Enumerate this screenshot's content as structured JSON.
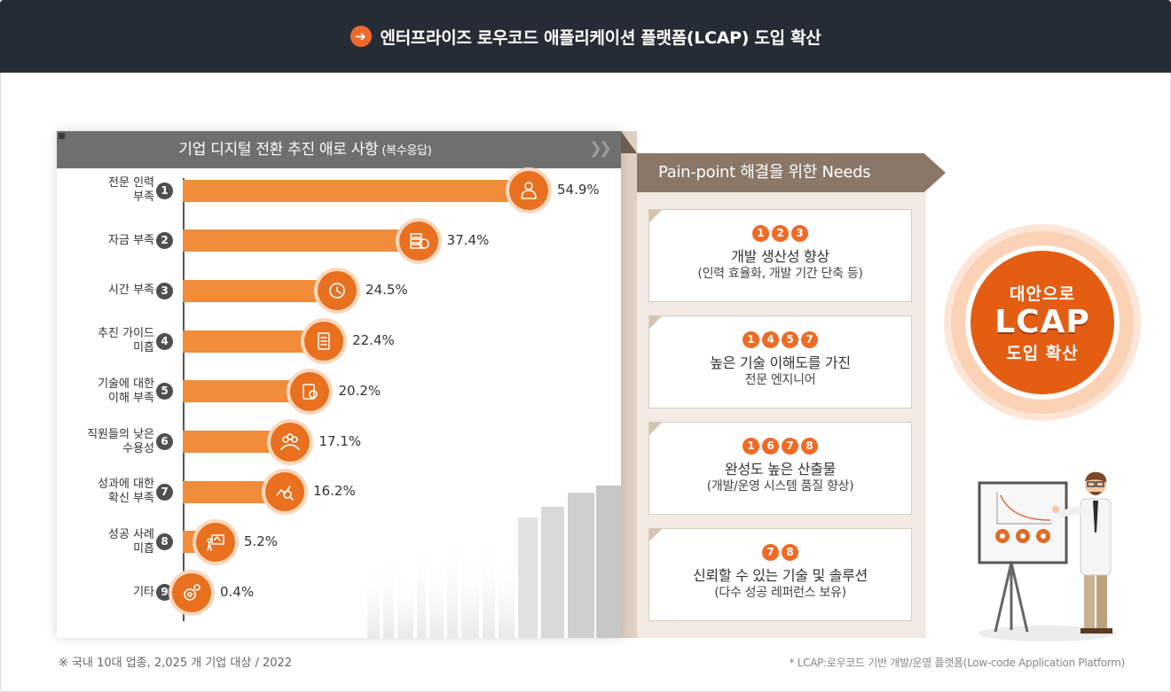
{
  "header": {
    "title": "엔터프라이즈 로우코드 애플리케이션 플랫폼(LCAP) 도입 확산",
    "icon": "arrow-right-circle-icon"
  },
  "chart_data": {
    "type": "bar",
    "orientation": "horizontal",
    "title": "기업 디지털 전환 추진 애로 사항",
    "subtitle": "(복수응답)",
    "categories": [
      {
        "label": "전문 인력\n부족",
        "num": "1",
        "icon": "person-icon"
      },
      {
        "label": "자금 부족",
        "num": "2",
        "icon": "money-icon"
      },
      {
        "label": "시간 부족",
        "num": "3",
        "icon": "clock-icon"
      },
      {
        "label": "추진 가이드\n미흡",
        "num": "4",
        "icon": "document-icon"
      },
      {
        "label": "기술에 대한\n이해 부족",
        "num": "5",
        "icon": "tech-doc-icon"
      },
      {
        "label": "직원들의 낮은\n수용성",
        "num": "6",
        "icon": "people-icon"
      },
      {
        "label": "성과에 대한\n확신 부족",
        "num": "7",
        "icon": "chart-search-icon"
      },
      {
        "label": "성공 사례\n미흡",
        "num": "8",
        "icon": "presentation-icon"
      },
      {
        "label": "기타",
        "num": "9",
        "icon": "gears-icon"
      }
    ],
    "values": [
      54.9,
      37.4,
      24.5,
      22.4,
      20.2,
      17.1,
      16.2,
      5.2,
      0.4
    ],
    "value_labels": [
      "54.9%",
      "37.4%",
      "24.5%",
      "22.4%",
      "20.2%",
      "17.1%",
      "16.2%",
      "5.2%",
      "0.4%"
    ],
    "unit": "%",
    "bar_color": "#f08c3a",
    "icon_color": "#e8701f"
  },
  "needs": {
    "title": "Pain-point 해결을 위한 Needs",
    "items": [
      {
        "nums": [
          "1",
          "2",
          "3"
        ],
        "title": "개발 생산성 향상",
        "sub": "(인력 효율화, 개발 기간 단축 등)"
      },
      {
        "nums": [
          "1",
          "4",
          "5",
          "7"
        ],
        "title": "높은 기술 이해도를 가진",
        "sub": "전문 엔지니어"
      },
      {
        "nums": [
          "1",
          "6",
          "7",
          "8"
        ],
        "title": "완성도 높은 산출물",
        "sub": "(개발/운영 시스템 품질 향상)"
      },
      {
        "nums": [
          "7",
          "8"
        ],
        "title": "신뢰할 수 있는 기술 및 솔루션",
        "sub": "(다수 성공 레퍼런스 보유)"
      }
    ]
  },
  "badge": {
    "line1": "대안으로",
    "line2": "LCAP",
    "line3": "도입 확산"
  },
  "footnotes": {
    "left": "※ 국내 10대 업종, 2,025 개 기업 대상 / 2022",
    "right": "* LCAP:로우코드 기반 개발/운영 플랫폼(Low-code Application Platform)"
  },
  "colors": {
    "header_bg": "#262c36",
    "accent": "#ef6a24",
    "needs_head": "#8a7768",
    "badge": "#e35d12"
  }
}
